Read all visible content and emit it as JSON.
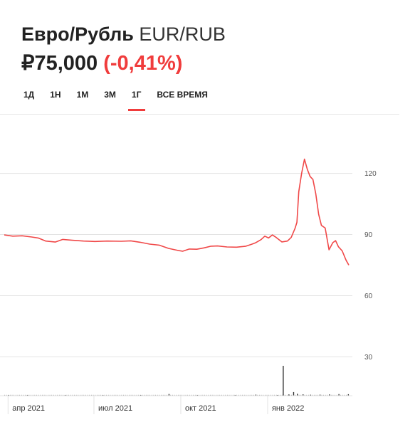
{
  "header": {
    "name": "Евро/Рубль",
    "ticker": "EUR/RUB",
    "price": "₽75,000",
    "change": "(-0,41%)"
  },
  "tabs": [
    {
      "label": "1Д",
      "active": false
    },
    {
      "label": "1Н",
      "active": false
    },
    {
      "label": "1М",
      "active": false
    },
    {
      "label": "3М",
      "active": false
    },
    {
      "label": "1Г",
      "active": true
    },
    {
      "label": "ВСЕ ВРЕМЯ",
      "active": false
    }
  ],
  "colors": {
    "accent": "#f03c3c",
    "line": "#f04848",
    "grid": "#e3e3e3",
    "volume": "#333333"
  },
  "chart_data": {
    "type": "line",
    "ylim": [
      20,
      130
    ],
    "yticks": [
      30,
      60,
      90,
      120
    ],
    "x_tick_labels": [
      {
        "label": "апр 2021",
        "x": 0
      },
      {
        "label": "июл 2021",
        "x": 91
      },
      {
        "label": "окт 2021",
        "x": 183
      },
      {
        "label": "янв 2022",
        "x": 275
      }
    ],
    "xlim": [
      -4,
      361
    ],
    "series": [
      {
        "values": [
          [
            -4,
            89.8
          ],
          [
            5,
            89.2
          ],
          [
            15,
            89.4
          ],
          [
            25,
            88.8
          ],
          [
            32,
            88.3
          ],
          [
            40,
            86.8
          ],
          [
            50,
            86.3
          ],
          [
            58,
            87.6
          ],
          [
            68,
            87.2
          ],
          [
            80,
            86.8
          ],
          [
            92,
            86.6
          ],
          [
            105,
            86.8
          ],
          [
            120,
            86.7
          ],
          [
            130,
            86.9
          ],
          [
            140,
            86.2
          ],
          [
            150,
            85.3
          ],
          [
            160,
            84.8
          ],
          [
            170,
            83.2
          ],
          [
            180,
            82.2
          ],
          [
            185,
            81.8
          ],
          [
            192,
            82.9
          ],
          [
            200,
            82.8
          ],
          [
            208,
            83.5
          ],
          [
            215,
            84.3
          ],
          [
            222,
            84.4
          ],
          [
            232,
            83.9
          ],
          [
            242,
            83.8
          ],
          [
            252,
            84.3
          ],
          [
            258,
            85.2
          ],
          [
            262,
            85.9
          ],
          [
            268,
            87.5
          ],
          [
            272,
            89.2
          ],
          [
            276,
            88.3
          ],
          [
            280,
            89.8
          ],
          [
            284,
            88.6
          ],
          [
            290,
            86.4
          ],
          [
            296,
            86.8
          ],
          [
            300,
            88.6
          ],
          [
            304,
            93.0
          ],
          [
            306,
            96.0
          ],
          [
            308,
            111.0
          ],
          [
            311,
            120.0
          ],
          [
            314,
            127.0
          ],
          [
            317,
            122.0
          ],
          [
            320,
            118.5
          ],
          [
            323,
            117.0
          ],
          [
            326,
            110.0
          ],
          [
            329,
            100.0
          ],
          [
            332,
            94.5
          ],
          [
            336,
            93.2
          ],
          [
            340,
            82.5
          ],
          [
            344,
            86.0
          ],
          [
            347,
            87.0
          ],
          [
            350,
            84.0
          ],
          [
            354,
            82.0
          ],
          [
            358,
            77.5
          ],
          [
            361,
            75.0
          ]
        ]
      }
    ],
    "volume": [
      [
        0,
        0.6
      ],
      [
        20,
        0.5
      ],
      [
        60,
        0.4
      ],
      [
        100,
        0.5
      ],
      [
        140,
        0.4
      ],
      [
        170,
        1.6
      ],
      [
        200,
        0.5
      ],
      [
        240,
        0.6
      ],
      [
        262,
        1.0
      ],
      [
        285,
        0.6
      ],
      [
        291,
        28.0
      ],
      [
        297,
        1.2
      ],
      [
        302,
        3.4
      ],
      [
        306,
        1.8
      ],
      [
        312,
        1.3
      ],
      [
        320,
        0.9
      ],
      [
        330,
        1.0
      ],
      [
        340,
        1.2
      ],
      [
        350,
        1.5
      ],
      [
        360,
        1.4
      ]
    ]
  }
}
